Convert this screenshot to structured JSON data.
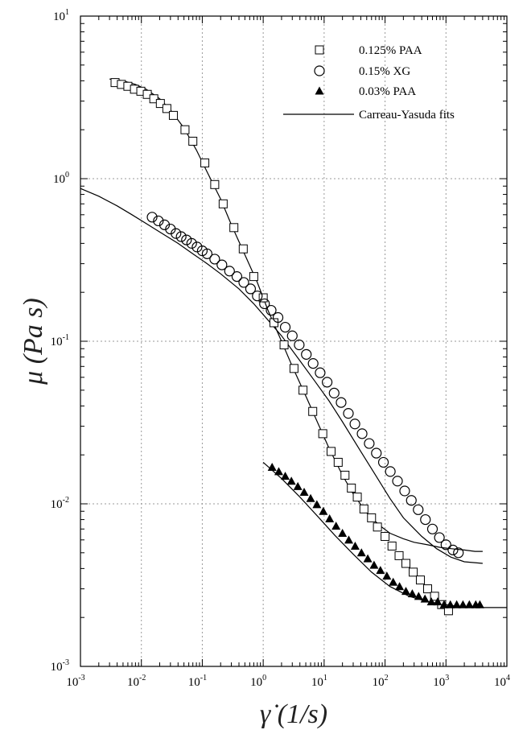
{
  "chart_data": {
    "type": "scatter",
    "title": "",
    "xlabel": "γ̇ (1/s)",
    "ylabel": "μ (Pa s)",
    "xscale": "log",
    "yscale": "log",
    "xlim": [
      0.001,
      10000
    ],
    "ylim": [
      0.001,
      10
    ],
    "grid": true,
    "legend_position": "top-right",
    "x_ticks": [
      {
        "base": "10",
        "exp": "-3"
      },
      {
        "base": "10",
        "exp": "-2"
      },
      {
        "base": "10",
        "exp": "-1"
      },
      {
        "base": "10",
        "exp": "0"
      },
      {
        "base": "10",
        "exp": "1"
      },
      {
        "base": "10",
        "exp": "2"
      },
      {
        "base": "10",
        "exp": "3"
      },
      {
        "base": "10",
        "exp": "4"
      }
    ],
    "y_ticks": [
      {
        "base": "10",
        "exp": "-3"
      },
      {
        "base": "10",
        "exp": "-2"
      },
      {
        "base": "10",
        "exp": "-1"
      },
      {
        "base": "10",
        "exp": "0"
      },
      {
        "base": "10",
        "exp": "1"
      }
    ],
    "series": [
      {
        "name": "0.125% PAA",
        "marker": "open-square",
        "x": [
          0.0037,
          0.0047,
          0.006,
          0.0077,
          0.0098,
          0.0125,
          0.016,
          0.0205,
          0.0262,
          0.0335,
          0.052,
          0.07,
          0.11,
          0.16,
          0.22,
          0.33,
          0.47,
          0.7,
          1.0,
          1.5,
          2.2,
          3.2,
          4.5,
          6.5,
          9.5,
          13,
          17,
          22,
          28,
          35,
          45,
          60,
          75,
          100,
          130,
          170,
          220,
          290,
          380,
          500,
          650,
          850,
          1100
        ],
        "y": [
          3.9,
          3.8,
          3.7,
          3.55,
          3.45,
          3.3,
          3.1,
          2.9,
          2.7,
          2.45,
          2.0,
          1.7,
          1.25,
          0.92,
          0.7,
          0.5,
          0.37,
          0.25,
          0.185,
          0.13,
          0.095,
          0.068,
          0.05,
          0.037,
          0.027,
          0.021,
          0.018,
          0.015,
          0.0125,
          0.011,
          0.0093,
          0.0082,
          0.0072,
          0.0063,
          0.0055,
          0.0048,
          0.0043,
          0.0038,
          0.0034,
          0.003,
          0.0027,
          0.0024,
          0.0022
        ]
      },
      {
        "name": "0.15% XG",
        "marker": "open-circle",
        "x": [
          0.015,
          0.019,
          0.024,
          0.03,
          0.037,
          0.045,
          0.055,
          0.067,
          0.082,
          0.1,
          0.12,
          0.16,
          0.21,
          0.28,
          0.37,
          0.48,
          0.62,
          0.8,
          1.05,
          1.35,
          1.75,
          2.3,
          3.0,
          3.9,
          5.1,
          6.6,
          8.6,
          11.2,
          14.6,
          19,
          25,
          32,
          42,
          55,
          72,
          94,
          122,
          160,
          210,
          270,
          350,
          460,
          600,
          780,
          1000,
          1300,
          1600
        ],
        "y": [
          0.58,
          0.55,
          0.52,
          0.49,
          0.46,
          0.44,
          0.42,
          0.4,
          0.38,
          0.36,
          0.345,
          0.32,
          0.295,
          0.27,
          0.25,
          0.23,
          0.21,
          0.19,
          0.17,
          0.155,
          0.14,
          0.122,
          0.108,
          0.095,
          0.083,
          0.073,
          0.064,
          0.056,
          0.048,
          0.042,
          0.036,
          0.031,
          0.027,
          0.0235,
          0.0205,
          0.018,
          0.0158,
          0.0138,
          0.012,
          0.0105,
          0.0092,
          0.008,
          0.007,
          0.0062,
          0.0056,
          0.0052,
          0.005
        ]
      },
      {
        "name": "0.03% PAA",
        "marker": "filled-triangle",
        "x": [
          1.4,
          1.8,
          2.3,
          2.9,
          3.7,
          4.7,
          6.0,
          7.6,
          9.7,
          12.3,
          15.7,
          20,
          25.4,
          32.3,
          41,
          52,
          66,
          84,
          107,
          136,
          173,
          220,
          280,
          356,
          452,
          575,
          730,
          930,
          1180,
          1500,
          1900,
          2420,
          3080,
          3600
        ],
        "y": [
          0.0168,
          0.0158,
          0.0148,
          0.0138,
          0.0128,
          0.0118,
          0.0108,
          0.0099,
          0.009,
          0.0081,
          0.0073,
          0.0066,
          0.006,
          0.0055,
          0.005,
          0.0046,
          0.0042,
          0.0039,
          0.0036,
          0.0033,
          0.0031,
          0.0029,
          0.0028,
          0.0027,
          0.0026,
          0.0025,
          0.0025,
          0.0024,
          0.0024,
          0.0024,
          0.0024,
          0.0024,
          0.0024,
          0.0024
        ]
      }
    ],
    "fit_curves": [
      {
        "name": "Carreau-Yasuda fits",
        "x": [
          0.003,
          0.005,
          0.008,
          0.012,
          0.02,
          0.03,
          0.05,
          0.08,
          0.12,
          0.2,
          0.3,
          0.5,
          0.8,
          1.2,
          2,
          3,
          5,
          8,
          12,
          20,
          30,
          50,
          80,
          120,
          200,
          300,
          500,
          800,
          1200,
          2000,
          3000,
          4000
        ],
        "y": [
          4.1,
          4.0,
          3.8,
          3.55,
          3.1,
          2.65,
          2.05,
          1.5,
          1.1,
          0.75,
          0.52,
          0.34,
          0.23,
          0.155,
          0.1,
          0.07,
          0.046,
          0.031,
          0.022,
          0.015,
          0.0115,
          0.0088,
          0.0074,
          0.0066,
          0.0061,
          0.0058,
          0.0056,
          0.0054,
          0.0053,
          0.0052,
          0.0051,
          0.0051
        ]
      },
      {
        "name": "Carreau-Yasuda fits",
        "x": [
          0.001,
          0.002,
          0.004,
          0.007,
          0.012,
          0.02,
          0.04,
          0.07,
          0.12,
          0.2,
          0.4,
          0.7,
          1.2,
          2,
          4,
          7,
          12,
          20,
          40,
          70,
          120,
          200,
          400,
          700,
          1200,
          2000,
          4000
        ],
        "y": [
          0.87,
          0.78,
          0.68,
          0.6,
          0.53,
          0.47,
          0.4,
          0.345,
          0.3,
          0.26,
          0.21,
          0.17,
          0.135,
          0.108,
          0.076,
          0.057,
          0.043,
          0.032,
          0.021,
          0.015,
          0.0108,
          0.0082,
          0.0063,
          0.0053,
          0.0047,
          0.0044,
          0.0043
        ]
      },
      {
        "name": "Carreau-Yasuda fits",
        "x": [
          1,
          2,
          4,
          8,
          15,
          30,
          60,
          120,
          250,
          500,
          1000,
          2000,
          4000,
          10000
        ],
        "y": [
          0.018,
          0.0143,
          0.011,
          0.0083,
          0.0064,
          0.0049,
          0.0038,
          0.0031,
          0.0027,
          0.0025,
          0.0024,
          0.0023,
          0.0023,
          0.0023
        ]
      }
    ],
    "legend": [
      {
        "label": "0.125% PAA",
        "marker": "open-square"
      },
      {
        "label": "0.15% XG",
        "marker": "open-circle"
      },
      {
        "label": "0.03% PAA",
        "marker": "filled-triangle"
      },
      {
        "label": "Carreau-Yasuda fits",
        "marker": "line"
      }
    ]
  }
}
